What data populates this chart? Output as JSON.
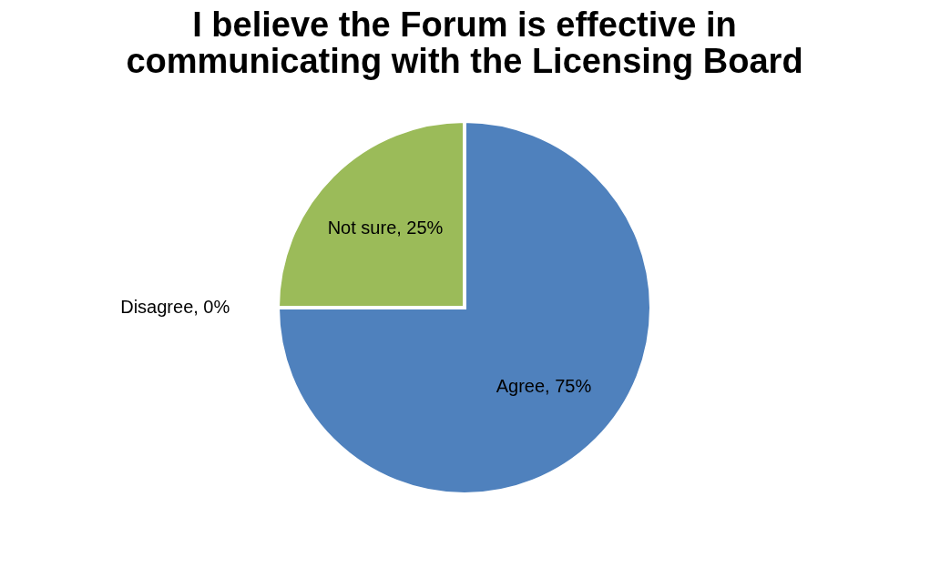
{
  "chart_data": {
    "type": "pie",
    "title": "I believe the Forum is effective in communicating with the Licensing Board",
    "categories": [
      "Agree",
      "Disagree",
      "Not sure"
    ],
    "values": [
      75,
      0,
      25
    ],
    "colors": [
      "#4f81bd",
      "#c0504d",
      "#9bbb59"
    ],
    "value_labels": [
      ", 75%",
      ", 0%",
      ", 25%"
    ],
    "legend": false
  }
}
